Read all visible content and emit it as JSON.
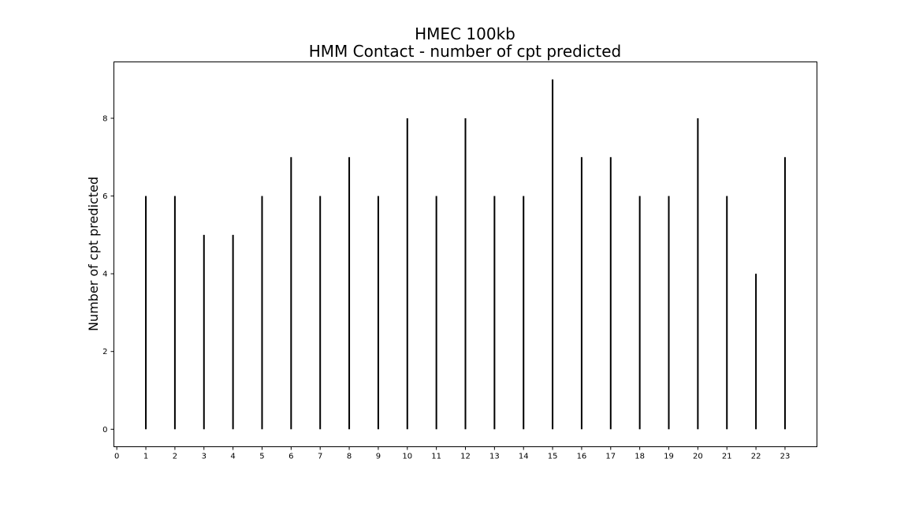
{
  "chart_data": {
    "type": "bar",
    "title": "HMEC 100kb",
    "subtitle": "HMM Contact - number of cpt predicted",
    "xlabel": "",
    "ylabel": "Number of cpt predicted",
    "x": [
      1,
      2,
      3,
      4,
      5,
      6,
      7,
      8,
      9,
      10,
      11,
      12,
      13,
      14,
      15,
      16,
      17,
      18,
      19,
      20,
      21,
      22,
      23
    ],
    "values": [
      6,
      6,
      5,
      5,
      6,
      7,
      6,
      7,
      6,
      8,
      6,
      8,
      6,
      6,
      9,
      7,
      7,
      6,
      6,
      8,
      6,
      4,
      7
    ],
    "xticks": [
      0,
      1,
      2,
      3,
      4,
      5,
      6,
      7,
      8,
      9,
      10,
      11,
      12,
      13,
      14,
      15,
      16,
      17,
      18,
      19,
      20,
      21,
      22,
      23
    ],
    "yticks": [
      0,
      2,
      4,
      6,
      8
    ],
    "xlim": [
      -0.1,
      24.1
    ],
    "ylim": [
      -0.45,
      9.45
    ],
    "grid": false,
    "bar_color": "#000000"
  }
}
